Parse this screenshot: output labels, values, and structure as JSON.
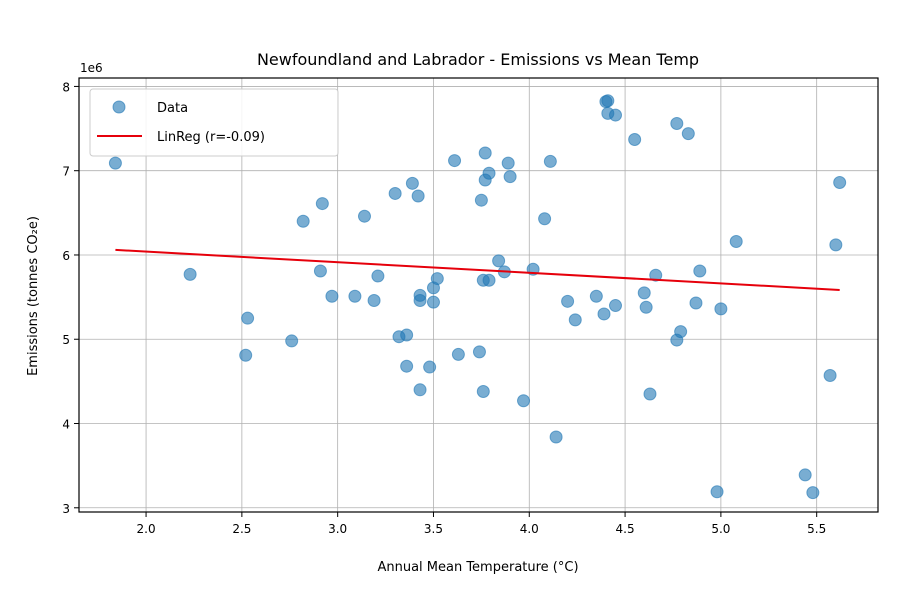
{
  "chart_data": {
    "type": "scatter",
    "title": "Newfoundland and Labrador - Emissions vs Mean Temp",
    "xlabel": "Annual Mean Temperature (°C)",
    "ylabel": "Emissions (tonnes CO₂e)",
    "y_offset_label": "1e6",
    "xlim": [
      1.65,
      5.82
    ],
    "ylim": [
      2.95,
      8.1
    ],
    "x_ticks": [
      2.0,
      2.5,
      3.0,
      3.5,
      4.0,
      4.5,
      5.0,
      5.5
    ],
    "x_tick_labels": [
      "2.0",
      "2.5",
      "3.0",
      "3.5",
      "4.0",
      "4.5",
      "5.0",
      "5.5"
    ],
    "y_ticks": [
      3,
      4,
      5,
      6,
      7,
      8
    ],
    "y_tick_labels": [
      "3",
      "4",
      "5",
      "6",
      "7",
      "8"
    ],
    "grid": true,
    "legend_position": "top-left",
    "series": [
      {
        "name": "Data",
        "kind": "scatter",
        "color": "#1f77b4",
        "points": [
          [
            1.84,
            7.09
          ],
          [
            2.23,
            5.77
          ],
          [
            2.52,
            4.81
          ],
          [
            2.53,
            5.25
          ],
          [
            2.76,
            4.98
          ],
          [
            2.82,
            6.4
          ],
          [
            2.91,
            5.81
          ],
          [
            2.92,
            6.61
          ],
          [
            2.97,
            5.51
          ],
          [
            3.09,
            5.51
          ],
          [
            3.14,
            6.46
          ],
          [
            3.19,
            5.46
          ],
          [
            3.21,
            5.75
          ],
          [
            3.3,
            6.73
          ],
          [
            3.32,
            5.03
          ],
          [
            3.36,
            5.05
          ],
          [
            3.36,
            4.68
          ],
          [
            3.39,
            6.85
          ],
          [
            3.42,
            6.7
          ],
          [
            3.43,
            5.52
          ],
          [
            3.43,
            5.46
          ],
          [
            3.43,
            4.4
          ],
          [
            3.48,
            4.67
          ],
          [
            3.5,
            5.61
          ],
          [
            3.5,
            5.44
          ],
          [
            3.52,
            5.72
          ],
          [
            3.61,
            7.12
          ],
          [
            3.63,
            4.82
          ],
          [
            3.74,
            4.85
          ],
          [
            3.75,
            6.65
          ],
          [
            3.76,
            5.7
          ],
          [
            3.76,
            4.38
          ],
          [
            3.77,
            7.21
          ],
          [
            3.77,
            6.89
          ],
          [
            3.79,
            6.97
          ],
          [
            3.79,
            5.7
          ],
          [
            3.84,
            5.93
          ],
          [
            3.87,
            5.8
          ],
          [
            3.89,
            7.09
          ],
          [
            3.9,
            6.93
          ],
          [
            3.97,
            4.27
          ],
          [
            4.02,
            5.83
          ],
          [
            4.08,
            6.43
          ],
          [
            4.11,
            7.11
          ],
          [
            4.14,
            3.84
          ],
          [
            4.2,
            5.45
          ],
          [
            4.24,
            5.23
          ],
          [
            4.35,
            5.51
          ],
          [
            4.39,
            5.3
          ],
          [
            4.4,
            7.82
          ],
          [
            4.41,
            7.83
          ],
          [
            4.41,
            7.68
          ],
          [
            4.45,
            7.66
          ],
          [
            4.45,
            5.4
          ],
          [
            4.55,
            7.37
          ],
          [
            4.6,
            5.55
          ],
          [
            4.61,
            5.38
          ],
          [
            4.63,
            4.35
          ],
          [
            4.66,
            5.76
          ],
          [
            4.77,
            7.56
          ],
          [
            4.77,
            4.99
          ],
          [
            4.79,
            5.09
          ],
          [
            4.83,
            7.44
          ],
          [
            4.87,
            5.43
          ],
          [
            4.89,
            5.81
          ],
          [
            4.98,
            3.19
          ],
          [
            5.0,
            5.36
          ],
          [
            5.08,
            6.16
          ],
          [
            5.44,
            3.39
          ],
          [
            5.48,
            3.18
          ],
          [
            5.57,
            4.57
          ],
          [
            5.6,
            6.12
          ],
          [
            5.62,
            6.86
          ]
        ]
      },
      {
        "name": "LinReg (r=-0.09)",
        "kind": "line",
        "color": "#e6000b",
        "points": [
          [
            1.84,
            6.06
          ],
          [
            5.62,
            5.585
          ]
        ]
      }
    ]
  }
}
